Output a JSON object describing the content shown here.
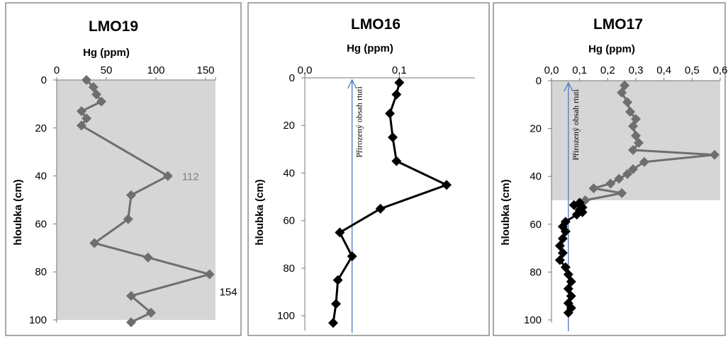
{
  "colors": {
    "shade": "#d6d6d6",
    "gray_series": "#6e6e6e",
    "black_series": "#000000",
    "baseline": "#4a7ab5",
    "panel_border": "#8c8c8c",
    "label_112": "#7f7f7f",
    "label_154": "#000000"
  },
  "chart_data": [
    {
      "type": "line",
      "title": "LMO19",
      "xlabel": "Hg (ppm)",
      "ylabel": "hloubka (cm)",
      "xlim": [
        0,
        160
      ],
      "ylim": [
        0,
        100
      ],
      "x_ticks": [
        "0",
        "50",
        "100",
        "150"
      ],
      "y_ticks": [
        "0",
        "20",
        "40",
        "60",
        "80",
        "100"
      ],
      "shaded_region": {
        "depth_from": 0,
        "depth_to": 100
      },
      "series": [
        {
          "color": "gray",
          "points": [
            {
              "hg": 30,
              "depth": 0
            },
            {
              "hg": 37,
              "depth": 3
            },
            {
              "hg": 40,
              "depth": 6
            },
            {
              "hg": 45,
              "depth": 9
            },
            {
              "hg": 25,
              "depth": 13
            },
            {
              "hg": 30,
              "depth": 16
            },
            {
              "hg": 25,
              "depth": 19
            },
            {
              "hg": 112,
              "depth": 40
            },
            {
              "hg": 75,
              "depth": 48
            },
            {
              "hg": 72,
              "depth": 58
            },
            {
              "hg": 38,
              "depth": 68
            },
            {
              "hg": 92,
              "depth": 74
            },
            {
              "hg": 154,
              "depth": 81
            },
            {
              "hg": 75,
              "depth": 90
            },
            {
              "hg": 95,
              "depth": 97
            },
            {
              "hg": 75,
              "depth": 101
            }
          ]
        }
      ],
      "data_labels": [
        {
          "text": "112",
          "hg": 112,
          "depth": 40,
          "color": "gray"
        },
        {
          "text": "154",
          "hg": 154,
          "depth": 81,
          "color": "black"
        }
      ]
    },
    {
      "type": "line",
      "title": "LMO16",
      "xlabel": "Hg (ppm)",
      "ylabel": "hloubka (cm)",
      "xlim": [
        0,
        0.18
      ],
      "ylim": [
        0,
        105
      ],
      "x_ticks": [
        "0,0",
        "0,1"
      ],
      "y_ticks": [
        "0",
        "20",
        "40",
        "60",
        "80",
        "100"
      ],
      "baseline": {
        "value": 0.05,
        "label": "Přirozený obsah rtuti"
      },
      "series": [
        {
          "color": "black",
          "points": [
            {
              "hg": 0.1,
              "depth": 2
            },
            {
              "hg": 0.097,
              "depth": 7
            },
            {
              "hg": 0.09,
              "depth": 15
            },
            {
              "hg": 0.093,
              "depth": 25
            },
            {
              "hg": 0.097,
              "depth": 35
            },
            {
              "hg": 0.15,
              "depth": 45
            },
            {
              "hg": 0.08,
              "depth": 55
            },
            {
              "hg": 0.037,
              "depth": 65
            },
            {
              "hg": 0.05,
              "depth": 75
            },
            {
              "hg": 0.035,
              "depth": 85
            },
            {
              "hg": 0.033,
              "depth": 95
            },
            {
              "hg": 0.03,
              "depth": 103
            }
          ]
        }
      ]
    },
    {
      "type": "line",
      "title": "LMO17",
      "xlabel": "Hg (ppm)",
      "ylabel": "hloubka (cm)",
      "xlim": [
        0,
        0.6
      ],
      "ylim": [
        0,
        100
      ],
      "x_ticks": [
        "0,0",
        "0,1",
        "0,2",
        "0,3",
        "0,4",
        "0,5",
        "0,6"
      ],
      "y_ticks": [
        "0",
        "20",
        "40",
        "60",
        "80",
        "100"
      ],
      "shaded_region": {
        "depth_from": 0,
        "depth_to": 50
      },
      "baseline": {
        "value": 0.06,
        "label": "Přirozený obsah rtuti"
      },
      "series": [
        {
          "color": "gray",
          "points": [
            {
              "hg": 0.26,
              "depth": 2
            },
            {
              "hg": 0.25,
              "depth": 5
            },
            {
              "hg": 0.27,
              "depth": 9
            },
            {
              "hg": 0.28,
              "depth": 13
            },
            {
              "hg": 0.3,
              "depth": 16
            },
            {
              "hg": 0.29,
              "depth": 19
            },
            {
              "hg": 0.3,
              "depth": 23
            },
            {
              "hg": 0.31,
              "depth": 26
            },
            {
              "hg": 0.29,
              "depth": 29
            },
            {
              "hg": 0.58,
              "depth": 31
            },
            {
              "hg": 0.33,
              "depth": 34
            },
            {
              "hg": 0.29,
              "depth": 37
            },
            {
              "hg": 0.27,
              "depth": 39
            },
            {
              "hg": 0.24,
              "depth": 41
            },
            {
              "hg": 0.21,
              "depth": 43
            },
            {
              "hg": 0.15,
              "depth": 45
            },
            {
              "hg": 0.25,
              "depth": 47
            },
            {
              "hg": 0.12,
              "depth": 50
            }
          ]
        },
        {
          "color": "black",
          "points": [
            {
              "hg": 0.1,
              "depth": 51
            },
            {
              "hg": 0.08,
              "depth": 52
            },
            {
              "hg": 0.11,
              "depth": 53
            },
            {
              "hg": 0.1,
              "depth": 54
            },
            {
              "hg": 0.11,
              "depth": 55
            },
            {
              "hg": 0.09,
              "depth": 56
            },
            {
              "hg": 0.05,
              "depth": 59
            },
            {
              "hg": 0.04,
              "depth": 61
            },
            {
              "hg": 0.05,
              "depth": 63
            },
            {
              "hg": 0.04,
              "depth": 66
            },
            {
              "hg": 0.03,
              "depth": 69
            },
            {
              "hg": 0.04,
              "depth": 72
            },
            {
              "hg": 0.03,
              "depth": 75
            },
            {
              "hg": 0.05,
              "depth": 78
            },
            {
              "hg": 0.06,
              "depth": 81
            },
            {
              "hg": 0.07,
              "depth": 84
            },
            {
              "hg": 0.06,
              "depth": 87
            },
            {
              "hg": 0.07,
              "depth": 90
            },
            {
              "hg": 0.06,
              "depth": 93
            },
            {
              "hg": 0.07,
              "depth": 95
            },
            {
              "hg": 0.06,
              "depth": 97
            }
          ]
        }
      ]
    }
  ]
}
